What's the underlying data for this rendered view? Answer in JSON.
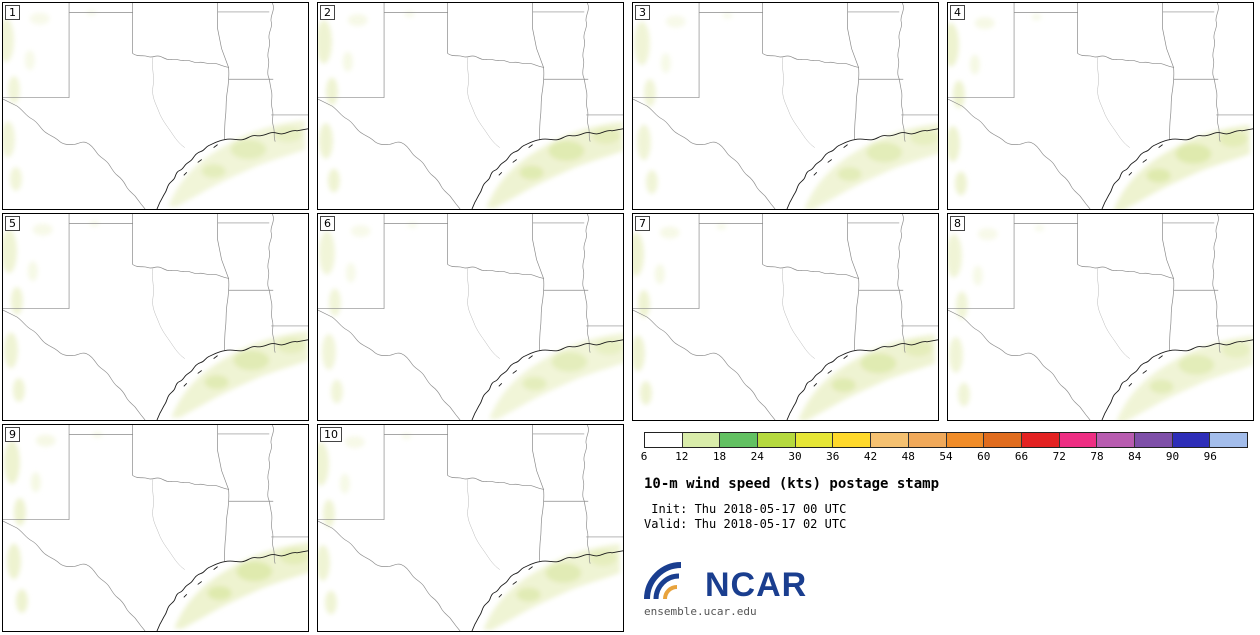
{
  "panels": [
    {
      "label": "1"
    },
    {
      "label": "2"
    },
    {
      "label": "3"
    },
    {
      "label": "4"
    },
    {
      "label": "5"
    },
    {
      "label": "6"
    },
    {
      "label": "7"
    },
    {
      "label": "8"
    },
    {
      "label": "9"
    },
    {
      "label": "10"
    }
  ],
  "colorbar": {
    "ticks": [
      "6",
      "12",
      "18",
      "24",
      "30",
      "36",
      "42",
      "48",
      "54",
      "60",
      "66",
      "72",
      "78",
      "84",
      "90",
      "96"
    ],
    "colors": [
      "#ffffff",
      "#d9ecaa",
      "#62c162",
      "#b5d93e",
      "#e6e636",
      "#ffd92b",
      "#f5c171",
      "#f0a95a",
      "#f08c28",
      "#e06c1e",
      "#e32222",
      "#ee2e83",
      "#b85cb0",
      "#7e4fa8",
      "#2e2eb8",
      "#a3bdeb"
    ]
  },
  "title": "10-m wind speed (kts) postage stamp",
  "init_line": " Init: Thu 2018-05-17 00 UTC",
  "valid_line": "Valid: Thu 2018-05-17 02 UTC",
  "branding": {
    "wordmark": "NCAR",
    "site": "ensemble.ucar.edu",
    "brand_blue": "#1a3e8f",
    "brand_orange": "#e8a33d"
  },
  "map_colors": {
    "shade_light": "#eef3d0",
    "shade_mid": "#dfeaae",
    "border": "#8a8a8a",
    "coast": "#1c1c1c",
    "river": "#8f8f8f",
    "faint": "#b8b8b8"
  }
}
